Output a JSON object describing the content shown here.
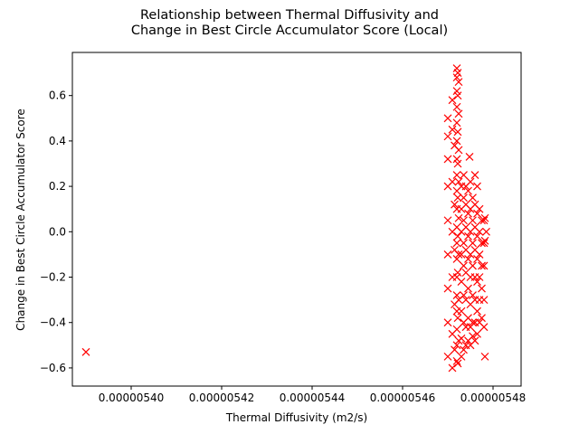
{
  "chart_data": {
    "type": "scatter",
    "title": "Relationship between Thermal Diffusivity and\nChange in Best Circle Accumulator Score (Local)",
    "title_lines": [
      "Relationship between Thermal Diffusivity and",
      "Change in Best Circle Accumulator Score (Local)"
    ],
    "xlabel": "Thermal Diffusivity (m2/s)",
    "ylabel": "Change in Best Circle Accumulator Score",
    "xlim": [
      5.387e-06,
      5.4862e-06
    ],
    "ylim": [
      -0.68,
      0.79
    ],
    "x_ticks": [
      5.4e-06,
      5.42e-06,
      5.44e-06,
      5.46e-06,
      5.48e-06
    ],
    "x_tick_labels": [
      "0.00000540",
      "0.00000542",
      "0.00000544",
      "0.00000546",
      "0.00000548"
    ],
    "y_ticks": [
      -0.6,
      -0.4,
      -0.2,
      0.0,
      0.2,
      0.4,
      0.6
    ],
    "y_tick_labels": [
      "−0.6",
      "−0.4",
      "−0.2",
      "0.0",
      "0.2",
      "0.4",
      "0.6"
    ],
    "marker": "x",
    "grid": false,
    "color": "#ff0000",
    "series": [
      {
        "points": [
          [
            5.39e-06,
            -0.53
          ],
          [
            5.47e-06,
            0.5
          ],
          [
            5.47e-06,
            0.42
          ],
          [
            5.47e-06,
            0.32
          ],
          [
            5.47e-06,
            0.2
          ],
          [
            5.47e-06,
            0.05
          ],
          [
            5.47e-06,
            -0.1
          ],
          [
            5.47e-06,
            -0.25
          ],
          [
            5.47e-06,
            -0.4
          ],
          [
            5.47e-06,
            -0.55
          ],
          [
            5.471e-06,
            0.58
          ],
          [
            5.471e-06,
            0.45
          ],
          [
            5.471e-06,
            0.22
          ],
          [
            5.471e-06,
            0.0
          ],
          [
            5.471e-06,
            -0.2
          ],
          [
            5.471e-06,
            -0.45
          ],
          [
            5.471e-06,
            -0.6
          ],
          [
            5.4715e-06,
            0.38
          ],
          [
            5.4715e-06,
            0.12
          ],
          [
            5.4715e-06,
            -0.08
          ],
          [
            5.4715e-06,
            -0.32
          ],
          [
            5.4715e-06,
            -0.52
          ],
          [
            5.472e-06,
            0.72
          ],
          [
            5.472e-06,
            0.68
          ],
          [
            5.472e-06,
            0.62
          ],
          [
            5.472e-06,
            0.55
          ],
          [
            5.472e-06,
            0.48
          ],
          [
            5.472e-06,
            0.4
          ],
          [
            5.472e-06,
            0.32
          ],
          [
            5.472e-06,
            0.25
          ],
          [
            5.472e-06,
            0.18
          ],
          [
            5.472e-06,
            0.1
          ],
          [
            5.472e-06,
            0.02
          ],
          [
            5.472e-06,
            -0.05
          ],
          [
            5.472e-06,
            -0.12
          ],
          [
            5.472e-06,
            -0.2
          ],
          [
            5.472e-06,
            -0.28
          ],
          [
            5.472e-06,
            -0.35
          ],
          [
            5.472e-06,
            -0.43
          ],
          [
            5.472e-06,
            -0.5
          ],
          [
            5.472e-06,
            -0.57
          ],
          [
            5.4722e-06,
            0.7
          ],
          [
            5.4722e-06,
            0.6
          ],
          [
            5.4722e-06,
            0.44
          ],
          [
            5.4722e-06,
            0.3
          ],
          [
            5.4722e-06,
            0.15
          ],
          [
            5.4722e-06,
            -0.02
          ],
          [
            5.4722e-06,
            -0.18
          ],
          [
            5.4722e-06,
            -0.38
          ],
          [
            5.4722e-06,
            -0.58
          ],
          [
            5.4724e-06,
            0.66
          ],
          [
            5.4724e-06,
            0.52
          ],
          [
            5.4724e-06,
            0.36
          ],
          [
            5.4724e-06,
            0.22
          ],
          [
            5.4724e-06,
            0.06
          ],
          [
            5.4724e-06,
            -0.1
          ],
          [
            5.4724e-06,
            -0.3
          ],
          [
            5.4724e-06,
            -0.48
          ],
          [
            5.473e-06,
            0.2
          ],
          [
            5.473e-06,
            0.1
          ],
          [
            5.473e-06,
            0.0
          ],
          [
            5.473e-06,
            -0.1
          ],
          [
            5.473e-06,
            -0.22
          ],
          [
            5.473e-06,
            -0.35
          ],
          [
            5.473e-06,
            -0.47
          ],
          [
            5.473e-06,
            -0.55
          ],
          [
            5.4735e-06,
            0.25
          ],
          [
            5.4735e-06,
            0.15
          ],
          [
            5.4735e-06,
            0.05
          ],
          [
            5.4735e-06,
            -0.05
          ],
          [
            5.4735e-06,
            -0.15
          ],
          [
            5.4735e-06,
            -0.28
          ],
          [
            5.4735e-06,
            -0.4
          ],
          [
            5.4735e-06,
            -0.52
          ],
          [
            5.474e-06,
            0.2
          ],
          [
            5.474e-06,
            0.12
          ],
          [
            5.474e-06,
            0.02
          ],
          [
            5.474e-06,
            -0.08
          ],
          [
            5.474e-06,
            -0.18
          ],
          [
            5.474e-06,
            -0.3
          ],
          [
            5.474e-06,
            -0.42
          ],
          [
            5.474e-06,
            -0.5
          ],
          [
            5.4745e-06,
            0.18
          ],
          [
            5.4745e-06,
            0.08
          ],
          [
            5.4745e-06,
            -0.02
          ],
          [
            5.4745e-06,
            -0.12
          ],
          [
            5.4745e-06,
            -0.25
          ],
          [
            5.4745e-06,
            -0.38
          ],
          [
            5.4745e-06,
            -0.48
          ],
          [
            5.4748e-06,
            0.33
          ],
          [
            5.475e-06,
            0.22
          ],
          [
            5.475e-06,
            0.1
          ],
          [
            5.475e-06,
            0.0
          ],
          [
            5.475e-06,
            -0.1
          ],
          [
            5.475e-06,
            -0.2
          ],
          [
            5.475e-06,
            -0.32
          ],
          [
            5.475e-06,
            -0.42
          ],
          [
            5.475e-06,
            -0.5
          ],
          [
            5.4755e-06,
            0.15
          ],
          [
            5.4755e-06,
            0.05
          ],
          [
            5.4755e-06,
            -0.05
          ],
          [
            5.4755e-06,
            -0.15
          ],
          [
            5.4755e-06,
            -0.28
          ],
          [
            5.4755e-06,
            -0.4
          ],
          [
            5.4755e-06,
            -0.46
          ],
          [
            5.476e-06,
            0.25
          ],
          [
            5.476e-06,
            0.12
          ],
          [
            5.476e-06,
            0.02
          ],
          [
            5.476e-06,
            -0.08
          ],
          [
            5.476e-06,
            -0.2
          ],
          [
            5.476e-06,
            -0.3
          ],
          [
            5.476e-06,
            -0.4
          ],
          [
            5.476e-06,
            -0.48
          ],
          [
            5.4765e-06,
            0.2
          ],
          [
            5.4765e-06,
            0.08
          ],
          [
            5.4765e-06,
            -0.02
          ],
          [
            5.4765e-06,
            -0.12
          ],
          [
            5.4765e-06,
            -0.22
          ],
          [
            5.4765e-06,
            -0.35
          ],
          [
            5.4765e-06,
            -0.45
          ],
          [
            5.477e-06,
            0.1
          ],
          [
            5.477e-06,
            0.0
          ],
          [
            5.477e-06,
            -0.1
          ],
          [
            5.477e-06,
            -0.2
          ],
          [
            5.477e-06,
            -0.3
          ],
          [
            5.477e-06,
            -0.4
          ],
          [
            5.4775e-06,
            0.05
          ],
          [
            5.4775e-06,
            -0.05
          ],
          [
            5.4775e-06,
            -0.15
          ],
          [
            5.4775e-06,
            -0.25
          ],
          [
            5.4775e-06,
            -0.38
          ],
          [
            5.478e-06,
            0.05
          ],
          [
            5.478e-06,
            -0.05
          ],
          [
            5.478e-06,
            -0.15
          ],
          [
            5.478e-06,
            -0.3
          ],
          [
            5.478e-06,
            -0.42
          ],
          [
            5.4782e-06,
            0.06
          ],
          [
            5.4782e-06,
            -0.04
          ],
          [
            5.4782e-06,
            -0.55
          ],
          [
            5.4785e-06,
            0.0
          ]
        ]
      }
    ]
  }
}
